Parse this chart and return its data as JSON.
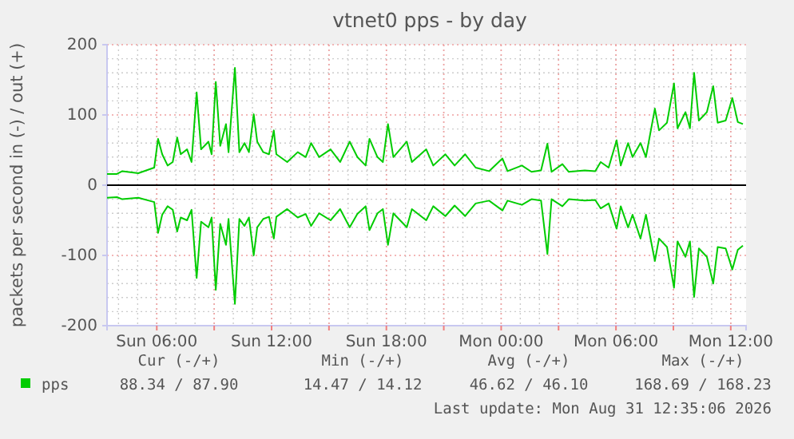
{
  "chart_data": {
    "type": "line",
    "title": "vtnet0 pps - by day",
    "ylabel": "packets per second in (-) / out (+)",
    "x": [
      "2026-08-30T03:24",
      "2026-08-30T03:55",
      "2026-08-30T04:12",
      "2026-08-30T05:02",
      "2026-08-30T05:52",
      "2026-08-30T06:04",
      "2026-08-30T06:17",
      "2026-08-30T06:34",
      "2026-08-30T06:50",
      "2026-08-30T07:04",
      "2026-08-30T07:15",
      "2026-08-30T07:35",
      "2026-08-30T07:49",
      "2026-08-30T08:05",
      "2026-08-30T08:19",
      "2026-08-30T08:42",
      "2026-08-30T08:52",
      "2026-08-30T09:05",
      "2026-08-30T09:19",
      "2026-08-30T09:37",
      "2026-08-30T09:45",
      "2026-08-30T10:05",
      "2026-08-30T10:19",
      "2026-08-30T10:35",
      "2026-08-30T10:49",
      "2026-08-30T11:04",
      "2026-08-30T11:15",
      "2026-08-30T11:34",
      "2026-08-30T11:52",
      "2026-08-30T12:07",
      "2026-08-30T12:15",
      "2026-08-30T12:49",
      "2026-08-30T13:22",
      "2026-08-30T13:47",
      "2026-08-30T14:04",
      "2026-08-30T14:29",
      "2026-08-30T15:05",
      "2026-08-30T15:35",
      "2026-08-30T16:05",
      "2026-08-30T16:29",
      "2026-08-30T16:55",
      "2026-08-30T17:07",
      "2026-08-30T17:32",
      "2026-08-30T17:49",
      "2026-08-30T18:05",
      "2026-08-30T18:22",
      "2026-08-30T19:04",
      "2026-08-30T19:20",
      "2026-08-30T20:05",
      "2026-08-30T20:27",
      "2026-08-30T21:05",
      "2026-08-30T21:34",
      "2026-08-30T22:07",
      "2026-08-30T22:40",
      "2026-08-30T23:22",
      "2026-08-31T00:04",
      "2026-08-31T00:20",
      "2026-08-31T01:05",
      "2026-08-31T01:35",
      "2026-08-31T02:05",
      "2026-08-31T02:25",
      "2026-08-31T02:38",
      "2026-08-31T03:12",
      "2026-08-31T03:32",
      "2026-08-31T04:22",
      "2026-08-31T04:55",
      "2026-08-31T05:12",
      "2026-08-31T05:37",
      "2026-08-31T06:02",
      "2026-08-31T06:15",
      "2026-08-31T06:38",
      "2026-08-31T06:52",
      "2026-08-31T07:17",
      "2026-08-31T07:34",
      "2026-08-31T08:02",
      "2026-08-31T08:15",
      "2026-08-31T08:40",
      "2026-08-31T09:02",
      "2026-08-31T09:13",
      "2026-08-31T09:38",
      "2026-08-31T09:52",
      "2026-08-31T10:05",
      "2026-08-31T10:20",
      "2026-08-31T10:45",
      "2026-08-31T11:05",
      "2026-08-31T11:19",
      "2026-08-31T11:44",
      "2026-08-31T12:05",
      "2026-08-31T12:22",
      "2026-08-31T12:38"
    ],
    "series": [
      {
        "name": "pps",
        "color": "#00cc00",
        "values": [
          16,
          16,
          20,
          17,
          25,
          66,
          44,
          28,
          33,
          68,
          44,
          51,
          33,
          132,
          51,
          62,
          44,
          147,
          56,
          87,
          47,
          167,
          47,
          60,
          47,
          101,
          62,
          47,
          44,
          78,
          44,
          33,
          47,
          40,
          60,
          40,
          51,
          33,
          62,
          40,
          28,
          66,
          40,
          33,
          87,
          40,
          62,
          33,
          51,
          28,
          44,
          28,
          44,
          25,
          20,
          38,
          20,
          28,
          19,
          21,
          59,
          19,
          30,
          19,
          21,
          20,
          33,
          25,
          64,
          28,
          60,
          40,
          60,
          40,
          109,
          78,
          89,
          145,
          81,
          104,
          81,
          160,
          92,
          104,
          141,
          89,
          92,
          124,
          90,
          87
        ]
      },
      {
        "color": "#00cc00",
        "values": [
          -18,
          -17,
          -20,
          -18,
          -24,
          -68,
          -42,
          -30,
          -35,
          -66,
          -46,
          -50,
          -35,
          -132,
          -52,
          -60,
          -46,
          -149,
          -55,
          -85,
          -48,
          -169,
          -48,
          -58,
          -46,
          -100,
          -60,
          -48,
          -45,
          -76,
          -45,
          -34,
          -46,
          -41,
          -58,
          -40,
          -50,
          -34,
          -60,
          -41,
          -30,
          -64,
          -40,
          -34,
          -85,
          -40,
          -60,
          -34,
          -50,
          -30,
          -44,
          -29,
          -44,
          -26,
          -22,
          -36,
          -22,
          -28,
          -20,
          -22,
          -98,
          -20,
          -30,
          -20,
          -22,
          -21,
          -33,
          -26,
          -62,
          -30,
          -60,
          -42,
          -76,
          -42,
          -108,
          -76,
          -88,
          -146,
          -80,
          -102,
          -80,
          -159,
          -90,
          -102,
          -140,
          -88,
          -90,
          -120,
          -92,
          -86
        ]
      }
    ],
    "xlim": [
      "2026-08-30T03:24",
      "2026-08-31T12:48"
    ],
    "xticks": [
      {
        "value": "2026-08-30T06:00",
        "label": "Sun 06:00"
      },
      {
        "value": "2026-08-30T09:00",
        "label": null
      },
      {
        "value": "2026-08-30T12:00",
        "label": "Sun 12:00"
      },
      {
        "value": "2026-08-30T15:00",
        "label": null
      },
      {
        "value": "2026-08-30T18:00",
        "label": "Sun 18:00"
      },
      {
        "value": "2026-08-30T21:00",
        "label": null
      },
      {
        "value": "2026-08-31T00:00",
        "label": "Mon 00:00"
      },
      {
        "value": "2026-08-31T03:00",
        "label": null
      },
      {
        "value": "2026-08-31T06:00",
        "label": "Mon 06:00"
      },
      {
        "value": "2026-08-31T09:00",
        "label": null
      },
      {
        "value": "2026-08-31T12:00",
        "label": "Mon 12:00"
      }
    ],
    "ylim": [
      -200,
      200
    ],
    "yticks": [
      -200,
      -100,
      0,
      100,
      200
    ],
    "ref_lines": [
      {
        "axis": "y",
        "value": 0,
        "color": "#000000"
      }
    ],
    "grid": true,
    "legend": "bottom left",
    "marker": "none",
    "line_style": "solid",
    "annotations": [
      "Cur (-/+)",
      "Min (-/+)",
      "Avg (-/+)",
      "Max (-/+)",
      "88.34 / 87.90",
      "14.47 / 14.12",
      "46.62 / 46.10",
      "168.69 / 168.23",
      "Last update: Mon Aug 31 12:35:06 2026"
    ]
  }
}
